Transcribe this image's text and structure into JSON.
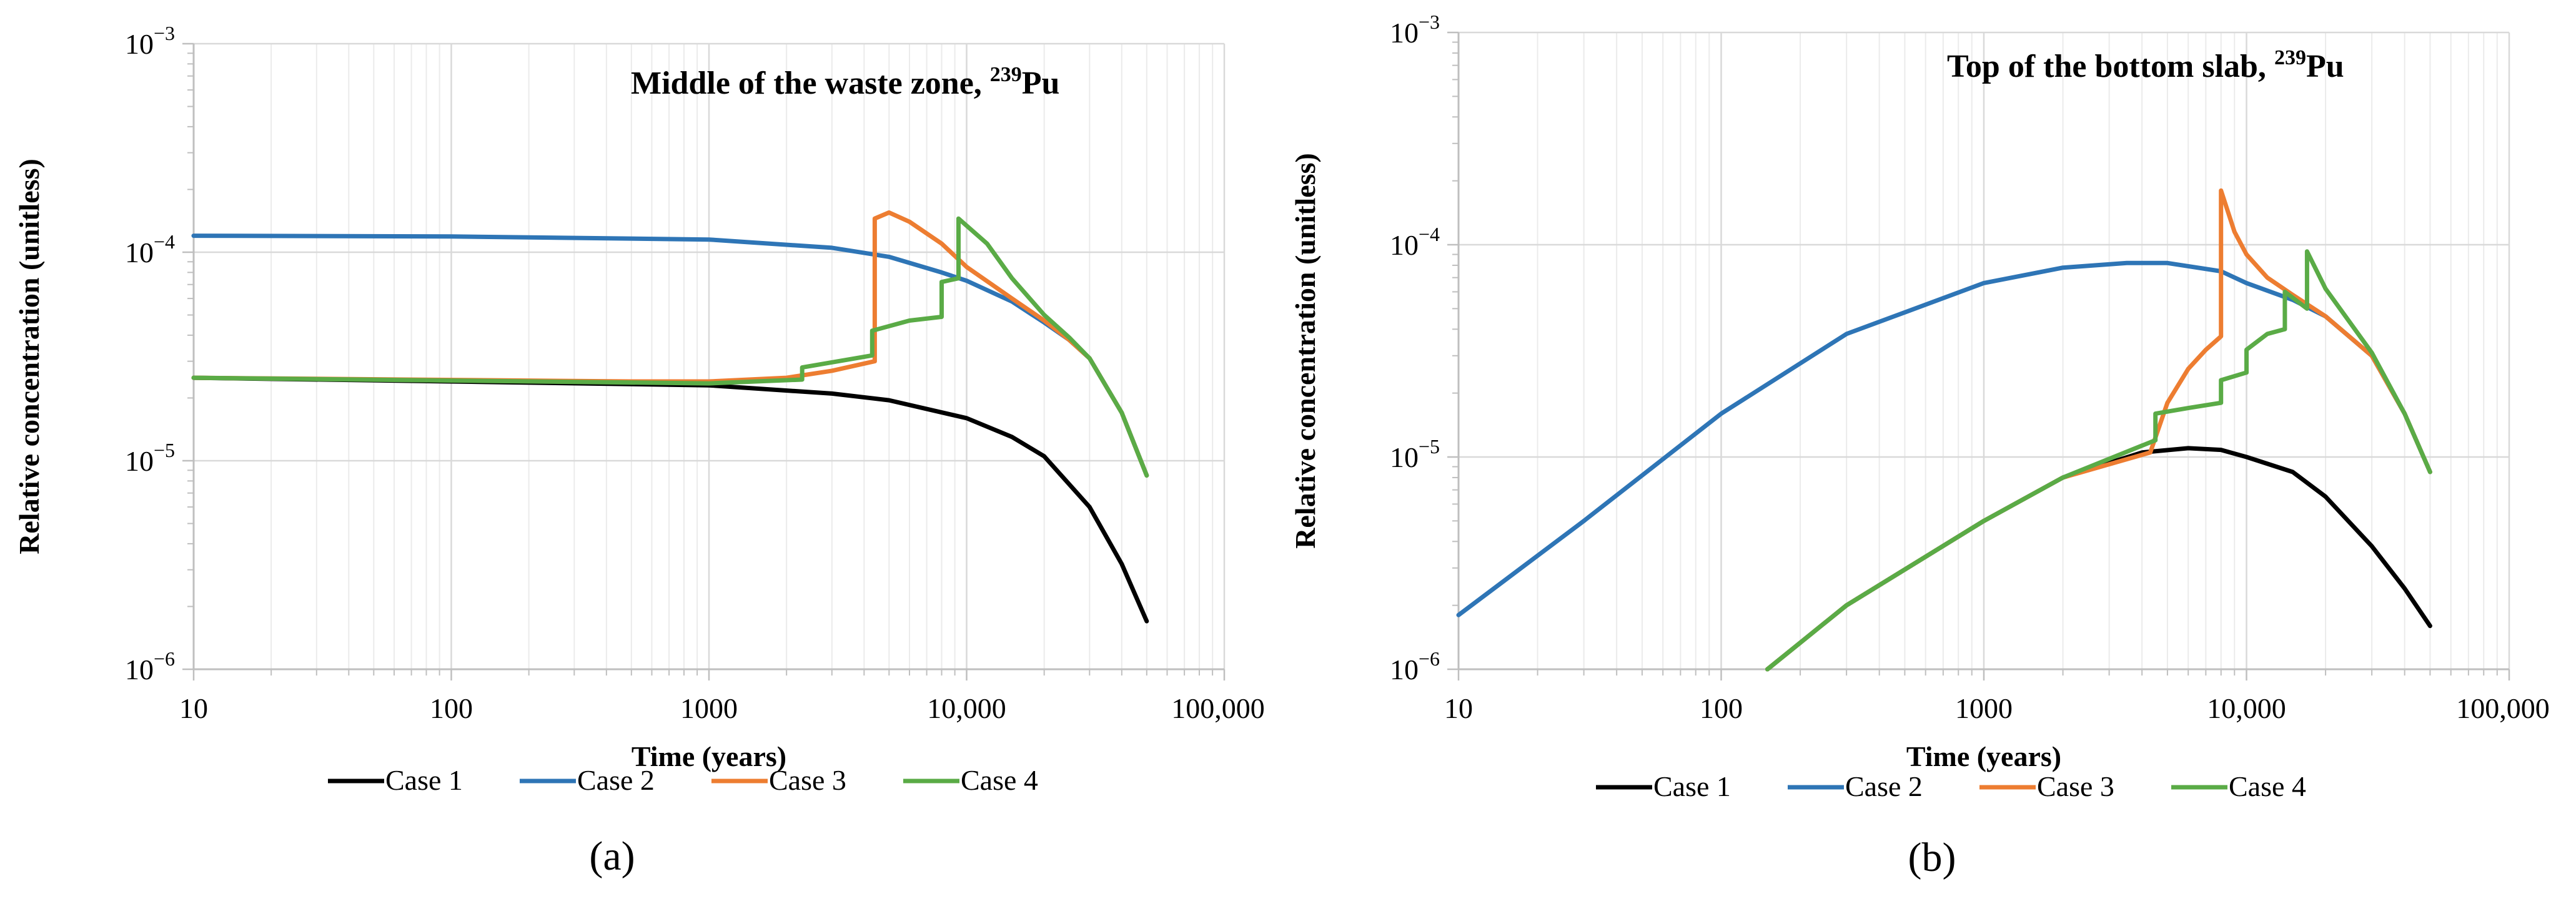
{
  "colors": {
    "Case 1": "#000000",
    "Case 2": "#2e75b6",
    "Case 3": "#ed7d31",
    "Case 4": "#5aab46",
    "grid": "#d9d9d9",
    "axis": "#bfbfbf"
  },
  "chart_data": [
    {
      "type": "line",
      "panel": "(a)",
      "title": "Middle of the waste zone, ",
      "title_sup": "239",
      "title_end": "Pu",
      "xlabel": "Time (years)",
      "ylabel": "Relative concentration (unitless)",
      "xscale": "log",
      "yscale": "log",
      "xlim": [
        10,
        100000
      ],
      "ylim": [
        1e-06,
        0.001
      ],
      "xticks": [
        {
          "value": 10,
          "label": "10"
        },
        {
          "value": 100,
          "label": "100"
        },
        {
          "value": 1000,
          "label": "1000"
        },
        {
          "value": 10000,
          "label": "10,000"
        },
        {
          "value": 100000,
          "label": "100,000"
        }
      ],
      "yticks": [
        {
          "value": 1e-06,
          "base": "10",
          "exp": "−6"
        },
        {
          "value": 1e-05,
          "base": "10",
          "exp": "−5"
        },
        {
          "value": 0.0001,
          "base": "10",
          "exp": "−4"
        },
        {
          "value": 0.001,
          "base": "10",
          "exp": "−3"
        }
      ],
      "legend_position": "bottom",
      "series": [
        {
          "name": "Case 1",
          "x": [
            10,
            100,
            1000,
            3000,
            5000,
            10000,
            15000,
            20000,
            30000,
            40000,
            50000
          ],
          "y": [
            2.5e-05,
            2.4e-05,
            2.3e-05,
            2.1e-05,
            1.95e-05,
            1.6e-05,
            1.3e-05,
            1.05e-05,
            6e-06,
            3.2e-06,
            1.7e-06
          ]
        },
        {
          "name": "Case 2",
          "x": [
            10,
            100,
            1000,
            3000,
            5000,
            8000,
            10000,
            15000,
            20000,
            25000,
            30000,
            40000,
            50000
          ],
          "y": [
            0.00012,
            0.000119,
            0.000115,
            0.000105,
            9.5e-05,
            8e-05,
            7.3e-05,
            5.8e-05,
            4.6e-05,
            3.8e-05,
            3.1e-05,
            1.7e-05,
            8.5e-06
          ]
        },
        {
          "name": "Case 3",
          "x": [
            10,
            500,
            1000,
            2000,
            3000,
            4400,
            4400,
            5000,
            6000,
            8000,
            10000,
            15000,
            20000,
            25000,
            30000,
            40000,
            50000
          ],
          "y": [
            2.5e-05,
            2.4e-05,
            2.4e-05,
            2.5e-05,
            2.7e-05,
            3e-05,
            0.000145,
            0.000155,
            0.00014,
            0.00011,
            8.5e-05,
            6e-05,
            4.7e-05,
            3.8e-05,
            3.1e-05,
            1.7e-05,
            8.5e-06
          ]
        },
        {
          "name": "Case 4",
          "x": [
            10,
            1000,
            2300,
            2300,
            4300,
            4300,
            6000,
            8000,
            8000,
            9300,
            9300,
            12000,
            15000,
            20000,
            25000,
            30000,
            40000,
            50000
          ],
          "y": [
            2.5e-05,
            2.35e-05,
            2.45e-05,
            2.8e-05,
            3.2e-05,
            4.2e-05,
            4.7e-05,
            4.9e-05,
            7.2e-05,
            7.5e-05,
            0.000145,
            0.00011,
            7.5e-05,
            5e-05,
            3.9e-05,
            3.1e-05,
            1.7e-05,
            8.5e-06
          ]
        }
      ]
    },
    {
      "type": "line",
      "panel": "(b)",
      "title": "Top of the bottom slab, ",
      "title_sup": "239",
      "title_end": "Pu",
      "xlabel": "Time (years)",
      "ylabel": "Relative concentration (unitless)",
      "xscale": "log",
      "yscale": "log",
      "xlim": [
        10,
        100000
      ],
      "ylim": [
        1e-06,
        0.001
      ],
      "xticks": [
        {
          "value": 10,
          "label": "10"
        },
        {
          "value": 100,
          "label": "100"
        },
        {
          "value": 1000,
          "label": "1000"
        },
        {
          "value": 10000,
          "label": "10,000"
        },
        {
          "value": 100000,
          "label": "100,000"
        }
      ],
      "yticks": [
        {
          "value": 1e-06,
          "base": "10",
          "exp": "−6"
        },
        {
          "value": 1e-05,
          "base": "10",
          "exp": "−5"
        },
        {
          "value": 0.0001,
          "base": "10",
          "exp": "−4"
        },
        {
          "value": 0.001,
          "base": "10",
          "exp": "−3"
        }
      ],
      "legend_position": "bottom",
      "series": [
        {
          "name": "Case 1",
          "x": [
            150,
            300,
            1000,
            2000,
            4000,
            6000,
            8000,
            10000,
            15000,
            20000,
            30000,
            40000,
            50000
          ],
          "y": [
            1e-06,
            2e-06,
            5e-06,
            8e-06,
            1.05e-05,
            1.1e-05,
            1.08e-05,
            1e-05,
            8.5e-06,
            6.5e-06,
            3.8e-06,
            2.4e-06,
            1.6e-06
          ]
        },
        {
          "name": "Case 2",
          "x": [
            10,
            30,
            100,
            300,
            1000,
            2000,
            3500,
            5000,
            8000,
            10000,
            15000,
            20000,
            30000,
            40000,
            50000
          ],
          "y": [
            1.8e-06,
            5e-06,
            1.6e-05,
            3.8e-05,
            6.6e-05,
            7.8e-05,
            8.2e-05,
            8.2e-05,
            7.5e-05,
            6.6e-05,
            5.5e-05,
            4.6e-05,
            3e-05,
            1.6e-05,
            8.5e-06
          ]
        },
        {
          "name": "Case 3",
          "x": [
            150,
            300,
            1000,
            2000,
            4300,
            5000,
            6000,
            7000,
            8000,
            8000,
            9000,
            10000,
            12000,
            15000,
            20000,
            30000,
            40000,
            50000
          ],
          "y": [
            1e-06,
            2e-06,
            5e-06,
            8e-06,
            1.05e-05,
            1.8e-05,
            2.6e-05,
            3.2e-05,
            3.7e-05,
            0.00018,
            0.000115,
            9e-05,
            7e-05,
            5.8e-05,
            4.6e-05,
            3e-05,
            1.6e-05,
            8.5e-06
          ]
        },
        {
          "name": "Case 4",
          "x": [
            150,
            300,
            1000,
            2000,
            4500,
            4500,
            6000,
            8000,
            8000,
            10000,
            10000,
            12000,
            14000,
            14000,
            17000,
            17000,
            20000,
            30000,
            40000,
            50000
          ],
          "y": [
            1e-06,
            2e-06,
            5e-06,
            8e-06,
            1.2e-05,
            1.6e-05,
            1.7e-05,
            1.8e-05,
            2.3e-05,
            2.5e-05,
            3.2e-05,
            3.8e-05,
            4e-05,
            6e-05,
            5e-05,
            9.3e-05,
            6.2e-05,
            3.1e-05,
            1.6e-05,
            8.5e-06
          ]
        }
      ]
    }
  ]
}
